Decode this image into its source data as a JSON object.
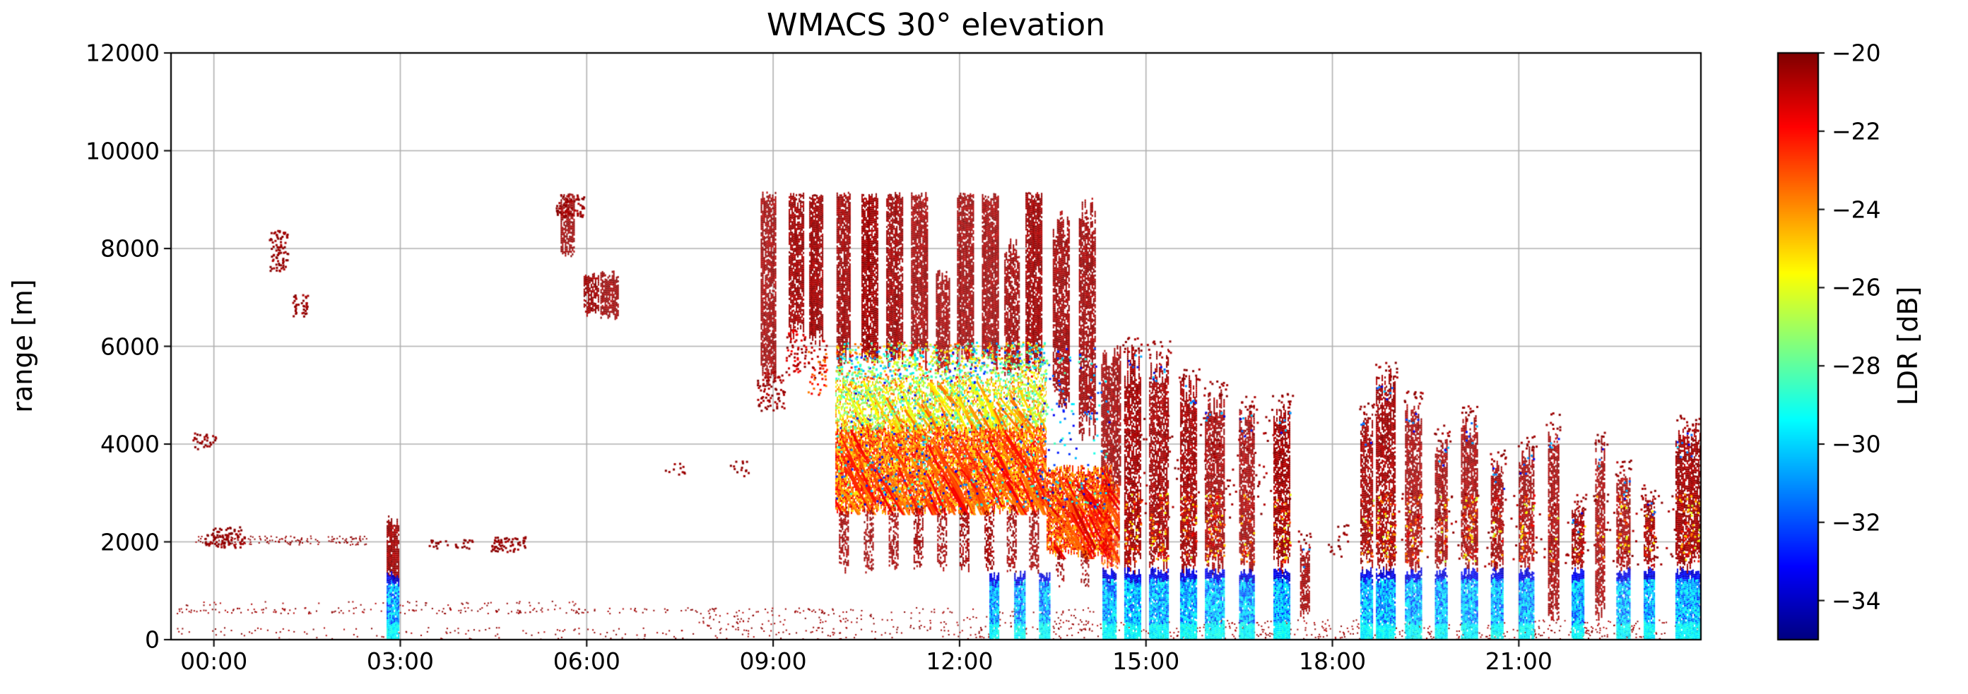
{
  "chart_data": {
    "type": "heatmap",
    "title": "WMACS 30° elevation",
    "xlabel": "",
    "ylabel": "range [m]",
    "x_tick_labels": [
      "00:00",
      "03:00",
      "06:00",
      "09:00",
      "12:00",
      "15:00",
      "18:00",
      "21:00"
    ],
    "x_tick_hours": [
      0,
      3,
      6,
      9,
      12,
      15,
      18,
      21
    ],
    "xlim_hours": [
      -0.69,
      23.93
    ],
    "ylim": [
      0,
      12000
    ],
    "y_ticks": [
      0,
      2000,
      4000,
      6000,
      8000,
      10000,
      12000
    ],
    "y_tick_labels": [
      "0",
      "2000",
      "4000",
      "6000",
      "8000",
      "10000",
      "12000"
    ],
    "grid": true,
    "grid_color": "#b0b0b0",
    "colorbar": {
      "label": "LDR [dB]",
      "ticks": [
        -20,
        -22,
        -24,
        -26,
        -28,
        -30,
        -32,
        -34
      ],
      "tick_labels": [
        "−20",
        "−22",
        "−24",
        "−26",
        "−28",
        "−30",
        "−32",
        "−34"
      ],
      "vmin": -35,
      "vmax": -20,
      "colormap": "jet"
    },
    "features": [
      {
        "kind": "dotline",
        "t0": -0.6,
        "t1": 10.2,
        "r0": 545,
        "r1": 665,
        "density": 0.11,
        "ldr": [
          -20.8,
          -20
        ]
      },
      {
        "kind": "dotline",
        "t0": -0.6,
        "t1": 6.0,
        "r0": 705,
        "r1": 800,
        "density": 0.05,
        "ldr": [
          -20.8,
          -20
        ]
      },
      {
        "kind": "dotline",
        "t0": 10.2,
        "t1": 14.3,
        "r0": 545,
        "r1": 665,
        "density": 0.05,
        "ldr": [
          -20.8,
          -20
        ]
      },
      {
        "kind": "dotline",
        "t0": -0.6,
        "t1": 23.93,
        "r0": 0,
        "r1": 260,
        "density": 0.04,
        "ldr": [
          -20.8,
          -20
        ]
      },
      {
        "kind": "dotline",
        "t0": 7.8,
        "t1": 14.6,
        "r0": 150,
        "r1": 530,
        "density": 0.05,
        "ldr": [
          -20.8,
          -20
        ]
      },
      {
        "kind": "dotline",
        "t0": 14.6,
        "t1": 23.93,
        "r0": 0,
        "r1": 420,
        "density": 0.06,
        "ldr": [
          -20.9,
          -20
        ]
      },
      {
        "kind": "dotline",
        "t0": -0.3,
        "t1": 2.45,
        "r0": 1950,
        "r1": 2130,
        "density": 0.2,
        "ldr": [
          -20.6,
          -20
        ]
      },
      {
        "kind": "speckles",
        "t0": -0.15,
        "t1": 0.5,
        "r0": 1900,
        "r1": 2320,
        "density": 0.5,
        "ldr": [
          -20.6,
          -20
        ]
      },
      {
        "kind": "speckles",
        "t0": -0.35,
        "t1": 0.05,
        "r0": 3900,
        "r1": 4280,
        "density": 0.3,
        "ldr": [
          -20.6,
          -20
        ]
      },
      {
        "kind": "speckles",
        "t0": 0.88,
        "t1": 1.18,
        "r0": 7550,
        "r1": 8380,
        "density": 0.5,
        "ldr": [
          -20.7,
          -20
        ]
      },
      {
        "kind": "speckles",
        "t0": 1.26,
        "t1": 1.5,
        "r0": 6620,
        "r1": 7080,
        "density": 0.5,
        "ldr": [
          -20.7,
          -20
        ]
      },
      {
        "kind": "column",
        "t0": 2.78,
        "t1": 2.97,
        "r0": 1250,
        "r1": 2480,
        "density": 0.8,
        "ldr": [
          -20.9,
          -20
        ]
      },
      {
        "kind": "bluebase",
        "t0": 2.78,
        "t1": 2.97,
        "r0": 0,
        "r1": 1320
      },
      {
        "kind": "speckles",
        "t0": 3.45,
        "t1": 3.75,
        "r0": 1880,
        "r1": 2050,
        "density": 0.4,
        "ldr": [
          -20.6,
          -20
        ]
      },
      {
        "kind": "speckles",
        "t0": 3.85,
        "t1": 4.15,
        "r0": 1880,
        "r1": 2060,
        "density": 0.4,
        "ldr": [
          -20.6,
          -20
        ]
      },
      {
        "kind": "speckles",
        "t0": 4.45,
        "t1": 5.0,
        "r0": 1800,
        "r1": 2120,
        "density": 0.55,
        "ldr": [
          -20.6,
          -20
        ]
      },
      {
        "kind": "column",
        "t0": 5.58,
        "t1": 5.8,
        "r0": 7850,
        "r1": 9120,
        "density": 0.7,
        "ldr": [
          -20.8,
          -20
        ]
      },
      {
        "kind": "speckles",
        "t0": 5.5,
        "t1": 5.95,
        "r0": 8650,
        "r1": 9120,
        "density": 0.5,
        "ldr": [
          -20.8,
          -20
        ]
      },
      {
        "kind": "column",
        "t0": 5.95,
        "t1": 6.2,
        "r0": 6680,
        "r1": 7480,
        "density": 0.75,
        "ldr": [
          -20.8,
          -20
        ]
      },
      {
        "kind": "column",
        "t0": 6.22,
        "t1": 6.5,
        "r0": 6580,
        "r1": 7520,
        "density": 0.75,
        "ldr": [
          -20.8,
          -20
        ]
      },
      {
        "kind": "speckles",
        "t0": 7.25,
        "t1": 7.6,
        "r0": 3380,
        "r1": 3620,
        "density": 0.2,
        "ldr": [
          -20.6,
          -20
        ]
      },
      {
        "kind": "speckles",
        "t0": 8.3,
        "t1": 8.6,
        "r0": 3350,
        "r1": 3700,
        "density": 0.2,
        "ldr": [
          -20.6,
          -20
        ]
      },
      {
        "kind": "column",
        "t0": 8.8,
        "t1": 9.03,
        "r0": 5350,
        "r1": 9120,
        "density": 0.8,
        "ldr": [
          -20.9,
          -20
        ]
      },
      {
        "kind": "speckles",
        "t0": 8.72,
        "t1": 9.2,
        "r0": 4700,
        "r1": 5500,
        "density": 0.3,
        "ldr": [
          -20.9,
          -20
        ]
      },
      {
        "kind": "column",
        "t0": 9.25,
        "t1": 9.48,
        "r0": 6250,
        "r1": 9120,
        "density": 0.8,
        "ldr": [
          -20.9,
          -20
        ]
      },
      {
        "kind": "speckles",
        "t0": 9.2,
        "t1": 9.52,
        "r0": 5400,
        "r1": 6400,
        "density": 0.3,
        "ldr": [
          -22,
          -20
        ]
      },
      {
        "kind": "column",
        "t0": 9.58,
        "t1": 9.8,
        "r0": 6100,
        "r1": 9120,
        "density": 0.85,
        "ldr": [
          -20.9,
          -20
        ]
      },
      {
        "kind": "speckles",
        "t0": 9.55,
        "t1": 9.85,
        "r0": 5000,
        "r1": 6150,
        "density": 0.25,
        "ldr": [
          -24,
          -20
        ]
      },
      {
        "kind": "column",
        "t0": 10.02,
        "t1": 10.24,
        "r0": 5750,
        "r1": 9120,
        "density": 0.85,
        "ldr": [
          -20.9,
          -20
        ]
      },
      {
        "kind": "column",
        "t0": 10.42,
        "t1": 10.68,
        "r0": 5750,
        "r1": 9120,
        "density": 0.85,
        "ldr": [
          -20.9,
          -20
        ]
      },
      {
        "kind": "column",
        "t0": 10.82,
        "t1": 11.08,
        "r0": 5750,
        "r1": 9120,
        "density": 0.85,
        "ldr": [
          -20.9,
          -20
        ]
      },
      {
        "kind": "column",
        "t0": 11.22,
        "t1": 11.48,
        "r0": 5700,
        "r1": 9120,
        "density": 0.85,
        "ldr": [
          -20.9,
          -20
        ]
      },
      {
        "kind": "column",
        "t0": 11.62,
        "t1": 11.84,
        "r0": 5500,
        "r1": 7520,
        "density": 0.8,
        "ldr": [
          -20.9,
          -20
        ]
      },
      {
        "kind": "column",
        "t0": 11.96,
        "t1": 12.22,
        "r0": 5750,
        "r1": 9120,
        "density": 0.85,
        "ldr": [
          -20.9,
          -20
        ]
      },
      {
        "kind": "column",
        "t0": 12.36,
        "t1": 12.62,
        "r0": 5700,
        "r1": 9120,
        "density": 0.85,
        "ldr": [
          -20.9,
          -20
        ]
      },
      {
        "kind": "column",
        "t0": 12.72,
        "t1": 12.96,
        "r0": 5500,
        "r1": 8120,
        "density": 0.8,
        "ldr": [
          -20.9,
          -20
        ]
      },
      {
        "kind": "column",
        "t0": 13.06,
        "t1": 13.32,
        "r0": 5600,
        "r1": 9120,
        "density": 0.85,
        "ldr": [
          -20.9,
          -20
        ]
      },
      {
        "kind": "column",
        "t0": 13.5,
        "t1": 13.76,
        "r0": 4900,
        "r1": 8620,
        "density": 0.8,
        "ldr": [
          -20.9,
          -20
        ]
      },
      {
        "kind": "column",
        "t0": 13.92,
        "t1": 14.18,
        "r0": 4300,
        "r1": 8950,
        "density": 0.8,
        "ldr": [
          -20.9,
          -20
        ]
      },
      {
        "kind": "column",
        "t0": 14.28,
        "t1": 14.58,
        "r0": 3000,
        "r1": 5880,
        "density": 0.8,
        "ldr": [
          -20.9,
          -20
        ]
      },
      {
        "kind": "speckles",
        "t0": 10.0,
        "t1": 13.4,
        "r0": 5350,
        "r1": 6100,
        "density": 0.35,
        "ldr": [
          -31,
          -21
        ]
      },
      {
        "kind": "streakband",
        "t0": 10.0,
        "t1": 13.4,
        "r0": 4300,
        "r1": 5350,
        "density": 0.5,
        "ldr": [
          -28,
          -23
        ]
      },
      {
        "kind": "streakband",
        "t0": 10.0,
        "t1": 13.4,
        "r0": 2650,
        "r1": 4350,
        "density": 0.85,
        "ldr": [
          -25.5,
          -21.5
        ]
      },
      {
        "kind": "streakband",
        "t0": 13.4,
        "t1": 14.45,
        "r0": 1750,
        "r1": 3500,
        "density": 0.85,
        "ldr": [
          -25,
          -21
        ]
      },
      {
        "kind": "streakband",
        "t0": 14.28,
        "t1": 14.58,
        "r0": 1500,
        "r1": 3200,
        "density": 0.7,
        "ldr": [
          -24.5,
          -21
        ]
      },
      {
        "kind": "speckles",
        "t0": 10.0,
        "t1": 14.4,
        "r0": 2700,
        "r1": 6000,
        "density": 0.05,
        "ldr": [
          -34,
          -28
        ]
      },
      {
        "kind": "speckles",
        "t0": 10.0,
        "t1": 13.4,
        "r0": 4300,
        "r1": 5800,
        "density": 0.12,
        "ldr": [
          -29,
          -25
        ]
      },
      {
        "kind": "column",
        "t0": 10.06,
        "t1": 10.2,
        "r0": 1450,
        "r1": 2700,
        "density": 0.5,
        "ldr": [
          -20.9,
          -20
        ]
      },
      {
        "kind": "column",
        "t0": 10.46,
        "t1": 10.6,
        "r0": 1450,
        "r1": 2700,
        "density": 0.5,
        "ldr": [
          -20.9,
          -20
        ]
      },
      {
        "kind": "column",
        "t0": 10.86,
        "t1": 11.0,
        "r0": 1450,
        "r1": 2700,
        "density": 0.5,
        "ldr": [
          -20.9,
          -20
        ]
      },
      {
        "kind": "column",
        "t0": 11.26,
        "t1": 11.4,
        "r0": 1450,
        "r1": 2700,
        "density": 0.5,
        "ldr": [
          -20.9,
          -20
        ]
      },
      {
        "kind": "column",
        "t0": 11.64,
        "t1": 11.78,
        "r0": 1450,
        "r1": 2700,
        "density": 0.5,
        "ldr": [
          -20.9,
          -20
        ]
      },
      {
        "kind": "column",
        "t0": 12.0,
        "t1": 12.14,
        "r0": 1450,
        "r1": 2700,
        "density": 0.5,
        "ldr": [
          -20.9,
          -20
        ]
      },
      {
        "kind": "column",
        "t0": 12.4,
        "t1": 12.54,
        "r0": 1450,
        "r1": 2700,
        "density": 0.5,
        "ldr": [
          -20.9,
          -20
        ]
      },
      {
        "kind": "column",
        "t0": 12.76,
        "t1": 12.9,
        "r0": 1450,
        "r1": 2700,
        "density": 0.5,
        "ldr": [
          -20.9,
          -20
        ]
      },
      {
        "kind": "column",
        "t0": 13.12,
        "t1": 13.26,
        "r0": 1450,
        "r1": 2700,
        "density": 0.5,
        "ldr": [
          -20.9,
          -20
        ]
      },
      {
        "kind": "column",
        "t0": 13.55,
        "t1": 13.68,
        "r0": 1100,
        "r1": 1800,
        "density": 0.4,
        "ldr": [
          -20.9,
          -20
        ]
      },
      {
        "kind": "column",
        "t0": 13.95,
        "t1": 14.08,
        "r0": 1100,
        "r1": 1800,
        "density": 0.4,
        "ldr": [
          -20.9,
          -20
        ]
      },
      {
        "kind": "bluebase",
        "t0": 12.48,
        "t1": 12.62,
        "r0": 0,
        "r1": 1300
      },
      {
        "kind": "bluebase",
        "t0": 12.88,
        "t1": 13.04,
        "r0": 0,
        "r1": 1350
      },
      {
        "kind": "bluebase",
        "t0": 13.28,
        "t1": 13.44,
        "r0": 0,
        "r1": 1300
      },
      {
        "kind": "bluebase",
        "t0": 14.3,
        "t1": 14.52,
        "r0": 0,
        "r1": 1400
      },
      {
        "kind": "speckles",
        "t0": 14.6,
        "t1": 17.35,
        "r0": 2500,
        "r1": 4600,
        "density": 0.04,
        "ldr": [
          -20.9,
          -20
        ]
      },
      {
        "kind": "speckles",
        "t0": 17.9,
        "t1": 18.25,
        "r0": 1700,
        "r1": 2400,
        "density": 0.12,
        "ldr": [
          -20.8,
          -20
        ]
      },
      {
        "kind": "speckles",
        "t0": 18.8,
        "t1": 23.9,
        "r0": 1500,
        "r1": 3000,
        "density": 0.03,
        "ldr": [
          -20.9,
          -20
        ]
      }
    ],
    "stripes": [
      {
        "tc": 14.78,
        "w": 0.26,
        "top": 5850,
        "blue": true,
        "orange": 0.5
      },
      {
        "tc": 15.2,
        "w": 0.3,
        "top": 5780,
        "blue": true,
        "orange": 0.6
      },
      {
        "tc": 15.68,
        "w": 0.26,
        "top": 5250,
        "blue": true,
        "orange": 0.4
      },
      {
        "tc": 16.1,
        "w": 0.3,
        "top": 5000,
        "blue": true,
        "orange": 0.7
      },
      {
        "tc": 16.62,
        "w": 0.24,
        "top": 4650,
        "blue": true,
        "orange": 0.3
      },
      {
        "tc": 17.18,
        "w": 0.26,
        "top": 4700,
        "blue": true,
        "orange": 0.5
      },
      {
        "tc": 17.55,
        "w": 0.14,
        "top": 1900,
        "blue": false,
        "orange": 0.1
      },
      {
        "tc": 18.55,
        "w": 0.2,
        "top": 4500,
        "blue": true,
        "orange": 0.3
      },
      {
        "tc": 18.85,
        "w": 0.3,
        "top": 5350,
        "blue": true,
        "orange": 0.6
      },
      {
        "tc": 19.3,
        "w": 0.26,
        "top": 4750,
        "blue": true,
        "orange": 0.5
      },
      {
        "tc": 19.75,
        "w": 0.2,
        "top": 4050,
        "blue": true,
        "orange": 0.3
      },
      {
        "tc": 20.2,
        "w": 0.26,
        "top": 4450,
        "blue": true,
        "orange": 0.6
      },
      {
        "tc": 20.65,
        "w": 0.2,
        "top": 3550,
        "blue": true,
        "orange": 0.3
      },
      {
        "tc": 21.12,
        "w": 0.24,
        "top": 3850,
        "blue": true,
        "orange": 0.5
      },
      {
        "tc": 21.55,
        "w": 0.16,
        "top": 4300,
        "blue": false,
        "orange": 0.2
      },
      {
        "tc": 21.95,
        "w": 0.2,
        "top": 2650,
        "blue": true,
        "orange": 0.4
      },
      {
        "tc": 22.3,
        "w": 0.14,
        "top": 3950,
        "blue": false,
        "orange": 0.2
      },
      {
        "tc": 22.68,
        "w": 0.22,
        "top": 3350,
        "blue": true,
        "orange": 0.4
      },
      {
        "tc": 23.1,
        "w": 0.18,
        "top": 2850,
        "blue": true,
        "orange": 0.3
      },
      {
        "tc": 23.72,
        "w": 0.4,
        "top": 4250,
        "blue": true,
        "orange": 0.5
      }
    ]
  }
}
